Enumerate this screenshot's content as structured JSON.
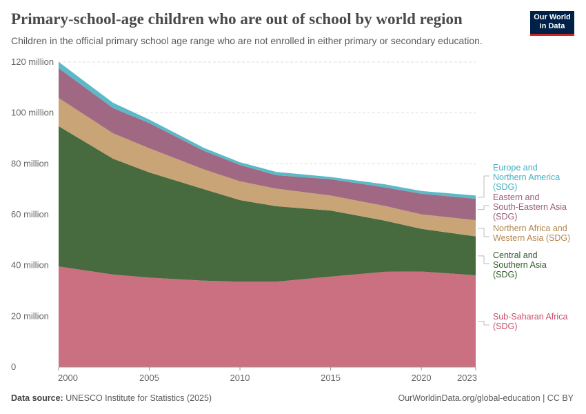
{
  "header": {
    "title": "Primary-school-age children who are out of school by world region",
    "subtitle": "Children in the official primary school age range who are not enrolled in either primary or secondary education.",
    "logo": "Our World in Data"
  },
  "footer": {
    "source_label": "Data source:",
    "source": "UNESCO Institute for Statistics (2025)",
    "link": "OurWorldinData.org/global-education | CC BY"
  },
  "chart_data": {
    "type": "area",
    "stacked": true,
    "title": "Primary-school-age children who are out of school by world region",
    "x": [
      2000,
      2003,
      2005,
      2008,
      2010,
      2012,
      2015,
      2018,
      2020,
      2023
    ],
    "xticks": [
      "2000",
      "2005",
      "2010",
      "2015",
      "2020",
      "2023"
    ],
    "yticks": [
      "0",
      "20 million",
      "40 million",
      "60 million",
      "80 million",
      "100 million",
      "120 million"
    ],
    "ylim": [
      0,
      120000000
    ],
    "grid": true,
    "legend": "right, inline labels",
    "series": [
      {
        "name": "Sub-Saharan Africa (SDG)",
        "color": "#ca7080",
        "label_color": "#c8506a",
        "values": [
          39.6,
          36.4,
          35.2,
          34.0,
          33.6,
          33.6,
          35.6,
          37.5,
          37.6,
          36.1
        ]
      },
      {
        "name": "Central and Southern Asia (SDG)",
        "color": "#476b3f",
        "label_color": "#2f5a26",
        "values": [
          55.2,
          45.6,
          41.4,
          36.0,
          32.1,
          29.7,
          26.0,
          20.1,
          16.8,
          15.3
        ]
      },
      {
        "name": "Northern Africa and Western Asia (SDG)",
        "color": "#c9a477",
        "label_color": "#b3874f",
        "values": [
          11.1,
          10.0,
          9.5,
          7.8,
          7.4,
          6.9,
          5.9,
          5.8,
          5.7,
          6.4
        ]
      },
      {
        "name": "Eastern and South-Eastern Asia (SDG)",
        "color": "#a06882",
        "label_color": "#9b5a7d",
        "values": [
          11.7,
          9.9,
          9.9,
          7.3,
          6.4,
          5.3,
          6.4,
          7.3,
          8.1,
          8.4
        ]
      },
      {
        "name": "Europe and Northern America (SDG)",
        "color": "#5bb9c8",
        "label_color": "#43afc3",
        "values": [
          2.5,
          2.1,
          1.4,
          1.2,
          1.1,
          1.3,
          0.9,
          1.2,
          1.1,
          1.3
        ]
      }
    ],
    "value_unit": "million",
    "labels": [
      [
        "Sub-Saharan Africa",
        "(SDG)"
      ],
      [
        "Central and",
        "Southern Asia",
        "(SDG)"
      ],
      [
        "Northern Africa and",
        "Western Asia (SDG)"
      ],
      [
        "Eastern and",
        "South-Eastern Asia",
        "(SDG)"
      ],
      [
        "Europe and",
        "Northern America",
        "(SDG)"
      ]
    ]
  }
}
